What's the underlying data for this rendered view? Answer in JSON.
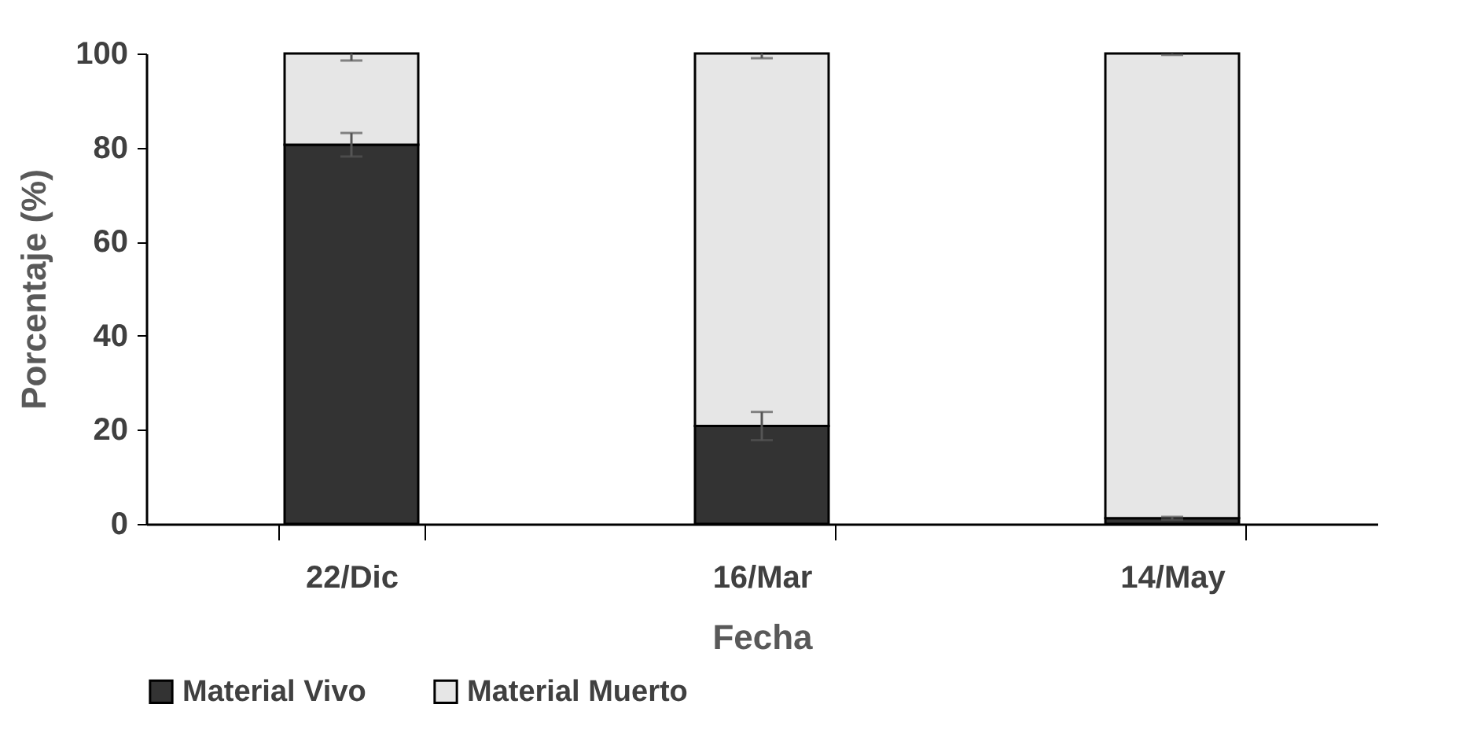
{
  "chart_data": {
    "type": "bar",
    "stacked": true,
    "xlabel": "Fecha",
    "ylabel": "Porcentaje (%)",
    "categories": [
      "22/Dic",
      "16/Mar",
      "14/May"
    ],
    "series": [
      {
        "name": "Material Vivo",
        "color": "#333333",
        "values": [
          80.6,
          20.8,
          1.2
        ],
        "errors": [
          2.5,
          3,
          0.3
        ]
      },
      {
        "name": "Material  Muerto",
        "color": "#e6e6e6",
        "values": [
          19.4,
          79.2,
          98.8
        ],
        "errors": [
          1.5,
          1,
          0.3
        ]
      }
    ],
    "ylim": [
      0,
      100
    ],
    "yticks": [
      0,
      20,
      40,
      60,
      80,
      100
    ],
    "grid": false,
    "legend": "bottom"
  }
}
